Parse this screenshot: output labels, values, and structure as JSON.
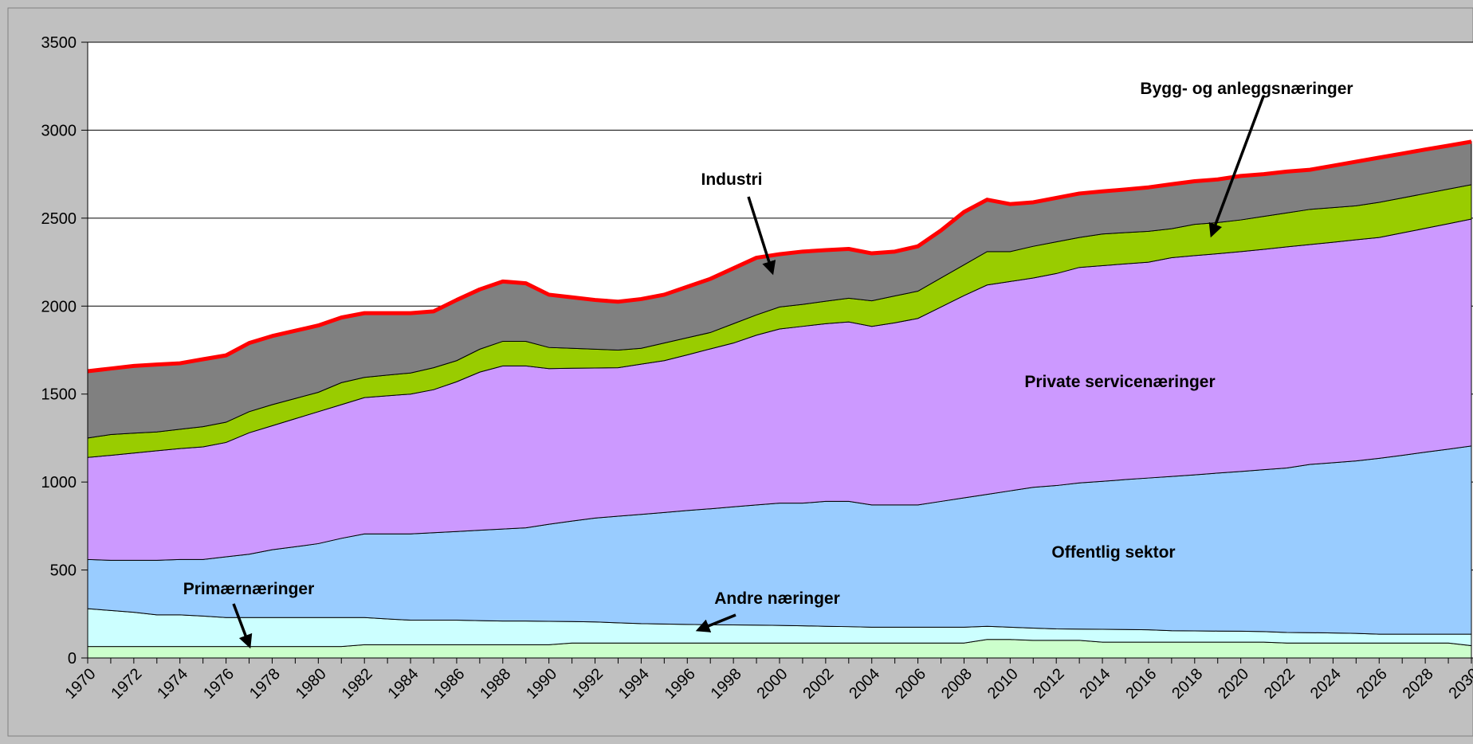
{
  "chart_data": {
    "type": "stacked_area",
    "categories": [
      "1970",
      null,
      "1972",
      null,
      "1974",
      null,
      "1976",
      null,
      "1978",
      null,
      "1980",
      null,
      "1982",
      null,
      "1984",
      null,
      "1986",
      null,
      "1988",
      null,
      "1990",
      null,
      "1992",
      null,
      "1994",
      null,
      "1996",
      null,
      "1998",
      null,
      "2000",
      null,
      "2002",
      null,
      "2004",
      null,
      "2006",
      null,
      "2008",
      null,
      "2010",
      null,
      "2012",
      null,
      "2014",
      null,
      "2016",
      null,
      "2018",
      null,
      "2020",
      null,
      "2022",
      null,
      "2024",
      null,
      "2026",
      null,
      "2028",
      null,
      "2030"
    ],
    "series": [
      {
        "name": "Primærnæringer",
        "color": "#ccffcc",
        "values": [
          65,
          65,
          65,
          65,
          65,
          65,
          65,
          65,
          65,
          65,
          65,
          65,
          75,
          75,
          75,
          75,
          75,
          75,
          75,
          75,
          75,
          85,
          85,
          85,
          85,
          85,
          85,
          85,
          85,
          85,
          85,
          85,
          85,
          85,
          85,
          85,
          85,
          85,
          85,
          105,
          105,
          100,
          100,
          100,
          90,
          90,
          90,
          90,
          90,
          90,
          90,
          90,
          85,
          85,
          85,
          85,
          85,
          85,
          85,
          85,
          70
        ]
      },
      {
        "name": "Andre næringer",
        "color": "#ccffff",
        "values": [
          215,
          205,
          195,
          180,
          180,
          173,
          165,
          165,
          165,
          165,
          165,
          165,
          155,
          147,
          140,
          140,
          140,
          137,
          135,
          135,
          133,
          122,
          120,
          115,
          110,
          108,
          106,
          104,
          103,
          102,
          100,
          98,
          95,
          93,
          90,
          90,
          90,
          90,
          90,
          75,
          70,
          70,
          65,
          64,
          73,
          72,
          70,
          65,
          64,
          63,
          62,
          60,
          60,
          59,
          57,
          55,
          50,
          50,
          50,
          50,
          65
        ]
      },
      {
        "name": "Offentlig sektor",
        "color": "#99ccff",
        "values": [
          280,
          285,
          295,
          310,
          315,
          322,
          345,
          360,
          385,
          402,
          420,
          450,
          475,
          483,
          490,
          497,
          504,
          514,
          523,
          530,
          552,
          571,
          590,
          606,
          621,
          634,
          647,
          659,
          671,
          683,
          695,
          697,
          710,
          712,
          695,
          695,
          695,
          715,
          735,
          750,
          775,
          800,
          815,
          831,
          841,
          852,
          863,
          877,
          887,
          898,
          908,
          920,
          935,
          956,
          968,
          980,
          1000,
          1017,
          1035,
          1052,
          1070
        ]
      },
      {
        "name": "Private servicenæringer",
        "color": "#cc99ff",
        "values": [
          580,
          597,
          610,
          623,
          630,
          640,
          650,
          690,
          705,
          728,
          750,
          760,
          775,
          785,
          795,
          813,
          851,
          899,
          927,
          920,
          885,
          869,
          853,
          844,
          854,
          863,
          885,
          909,
          931,
          965,
          990,
          1005,
          1010,
          1020,
          1015,
          1035,
          1060,
          1105,
          1150,
          1190,
          1190,
          1190,
          1205,
          1225,
          1226,
          1226,
          1227,
          1243,
          1246,
          1247,
          1250,
          1253,
          1257,
          1250,
          1253,
          1257,
          1255,
          1264,
          1272,
          1281,
          1290
        ]
      },
      {
        "name": "Bygg- og anleggsnæringer",
        "color": "#99cc00",
        "values": [
          110,
          118,
          113,
          107,
          110,
          115,
          115,
          120,
          120,
          115,
          110,
          125,
          115,
          118,
          120,
          125,
          120,
          130,
          140,
          140,
          120,
          113,
          107,
          100,
          90,
          100,
          97,
          93,
          110,
          115,
          125,
          125,
          128,
          135,
          145,
          153,
          155,
          165,
          175,
          190,
          170,
          180,
          180,
          170,
          180,
          178,
          175,
          165,
          178,
          177,
          180,
          187,
          193,
          200,
          197,
          193,
          200,
          199,
          198,
          197,
          195
        ]
      },
      {
        "name": "Industri",
        "color": "#808080",
        "values": [
          380,
          375,
          382,
          383,
          375,
          383,
          380,
          390,
          390,
          385,
          380,
          370,
          365,
          352,
          340,
          320,
          345,
          340,
          340,
          330,
          300,
          290,
          280,
          275,
          280,
          275,
          290,
          305,
          315,
          325,
          300,
          300,
          290,
          280,
          270,
          252,
          255,
          270,
          300,
          295,
          270,
          250,
          250,
          250,
          242,
          245,
          250,
          253,
          245,
          245,
          250,
          240,
          235,
          225,
          238,
          251,
          254,
          252,
          250,
          247,
          245
        ]
      }
    ],
    "total_line_color": "#ff0000",
    "ylim": [
      0,
      3500
    ],
    "yticks": [
      0,
      500,
      1000,
      1500,
      2000,
      2500,
      3000,
      3500
    ],
    "grid": true
  }
}
